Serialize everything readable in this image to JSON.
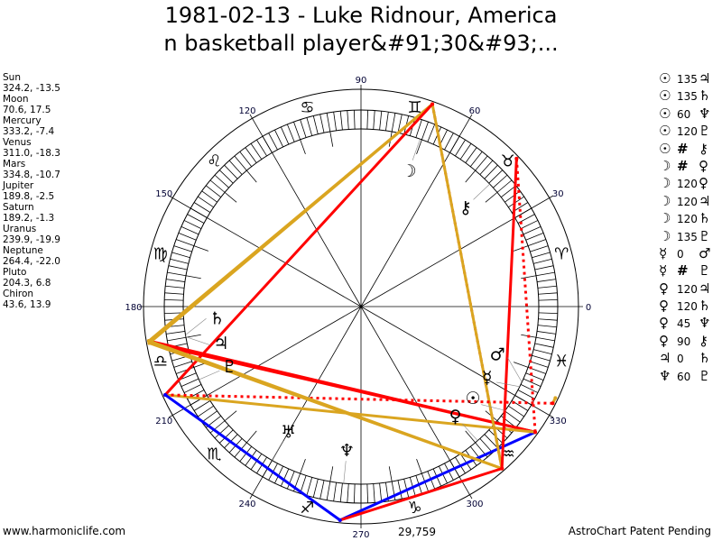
{
  "title": {
    "line1": "1981-02-13 - Luke Ridnour, America",
    "line2": "n basketball player&#91;30&#93;..."
  },
  "planets": [
    {
      "name": "Sun",
      "pos": "324.2, -13.5",
      "lon": 324.2,
      "glyph": "☉"
    },
    {
      "name": "Moon",
      "pos": "70.6, 17.5",
      "lon": 70.6,
      "glyph": "☽"
    },
    {
      "name": "Mercury",
      "pos": "333.2, -7.4",
      "lon": 333.2,
      "glyph": "☿"
    },
    {
      "name": "Venus",
      "pos": "311.0, -18.3",
      "lon": 311.0,
      "glyph": "♀"
    },
    {
      "name": "Mars",
      "pos": "334.8, -10.7",
      "lon": 334.8,
      "glyph": "♂"
    },
    {
      "name": "Jupiter",
      "pos": "189.8, -2.5",
      "lon": 189.8,
      "glyph": "♃"
    },
    {
      "name": "Saturn",
      "pos": "189.2, -1.3",
      "lon": 189.2,
      "glyph": "♄"
    },
    {
      "name": "Uranus",
      "pos": "239.9, -19.9",
      "lon": 239.9,
      "glyph": "♅"
    },
    {
      "name": "Neptune",
      "pos": "264.4, -22.0",
      "lon": 264.4,
      "glyph": "♆"
    },
    {
      "name": "Pluto",
      "pos": "204.3, 6.8",
      "lon": 204.3,
      "glyph": "♇"
    },
    {
      "name": "Chiron",
      "pos": "43.6, 13.9",
      "lon": 43.6,
      "glyph": "⚷"
    }
  ],
  "aspects": [
    {
      "p1": "Sun",
      "aspect": "135",
      "p2": "Jupiter"
    },
    {
      "p1": "Sun",
      "aspect": "135",
      "p2": "Saturn"
    },
    {
      "p1": "Sun",
      "aspect": "60",
      "p2": "Neptune"
    },
    {
      "p1": "Sun",
      "aspect": "120",
      "p2": "Pluto"
    },
    {
      "p1": "Sun",
      "aspect": "#",
      "p2": "Chiron"
    },
    {
      "p1": "Moon",
      "aspect": "#",
      "p2": "Venus"
    },
    {
      "p1": "Moon",
      "aspect": "120",
      "p2": "Venus"
    },
    {
      "p1": "Moon",
      "aspect": "120",
      "p2": "Jupiter"
    },
    {
      "p1": "Moon",
      "aspect": "120",
      "p2": "Saturn"
    },
    {
      "p1": "Moon",
      "aspect": "135",
      "p2": "Pluto"
    },
    {
      "p1": "Mercury",
      "aspect": "0",
      "p2": "Mars"
    },
    {
      "p1": "Mercury",
      "aspect": "#",
      "p2": "Pluto"
    },
    {
      "p1": "Venus",
      "aspect": "120",
      "p2": "Jupiter"
    },
    {
      "p1": "Venus",
      "aspect": "120",
      "p2": "Saturn"
    },
    {
      "p1": "Venus",
      "aspect": "45",
      "p2": "Neptune"
    },
    {
      "p1": "Venus",
      "aspect": "90",
      "p2": "Chiron"
    },
    {
      "p1": "Jupiter",
      "aspect": "0",
      "p2": "Saturn"
    },
    {
      "p1": "Neptune",
      "aspect": "60",
      "p2": "Pluto"
    }
  ],
  "aspect_colors": {
    "120": "#DAA520",
    "135": "#FF0000",
    "60": "#0000FF",
    "45": "#FF0000",
    "90": "#FF0000",
    "0": "#DAA520",
    "#": "#FF0000"
  },
  "signs": [
    "♈",
    "♉",
    "♊",
    "♋",
    "♌",
    "♍",
    "♎",
    "♏",
    "♐",
    "♑",
    "♒",
    "♓"
  ],
  "degree_labels": [
    "0",
    "30",
    "60",
    "90",
    "120",
    "150",
    "180",
    "210",
    "240",
    "270",
    "300",
    "330"
  ],
  "footer": {
    "left": "www.harmoniclife.com",
    "right": "AstroChart Patent Pending",
    "bottom_value": "29,759"
  }
}
